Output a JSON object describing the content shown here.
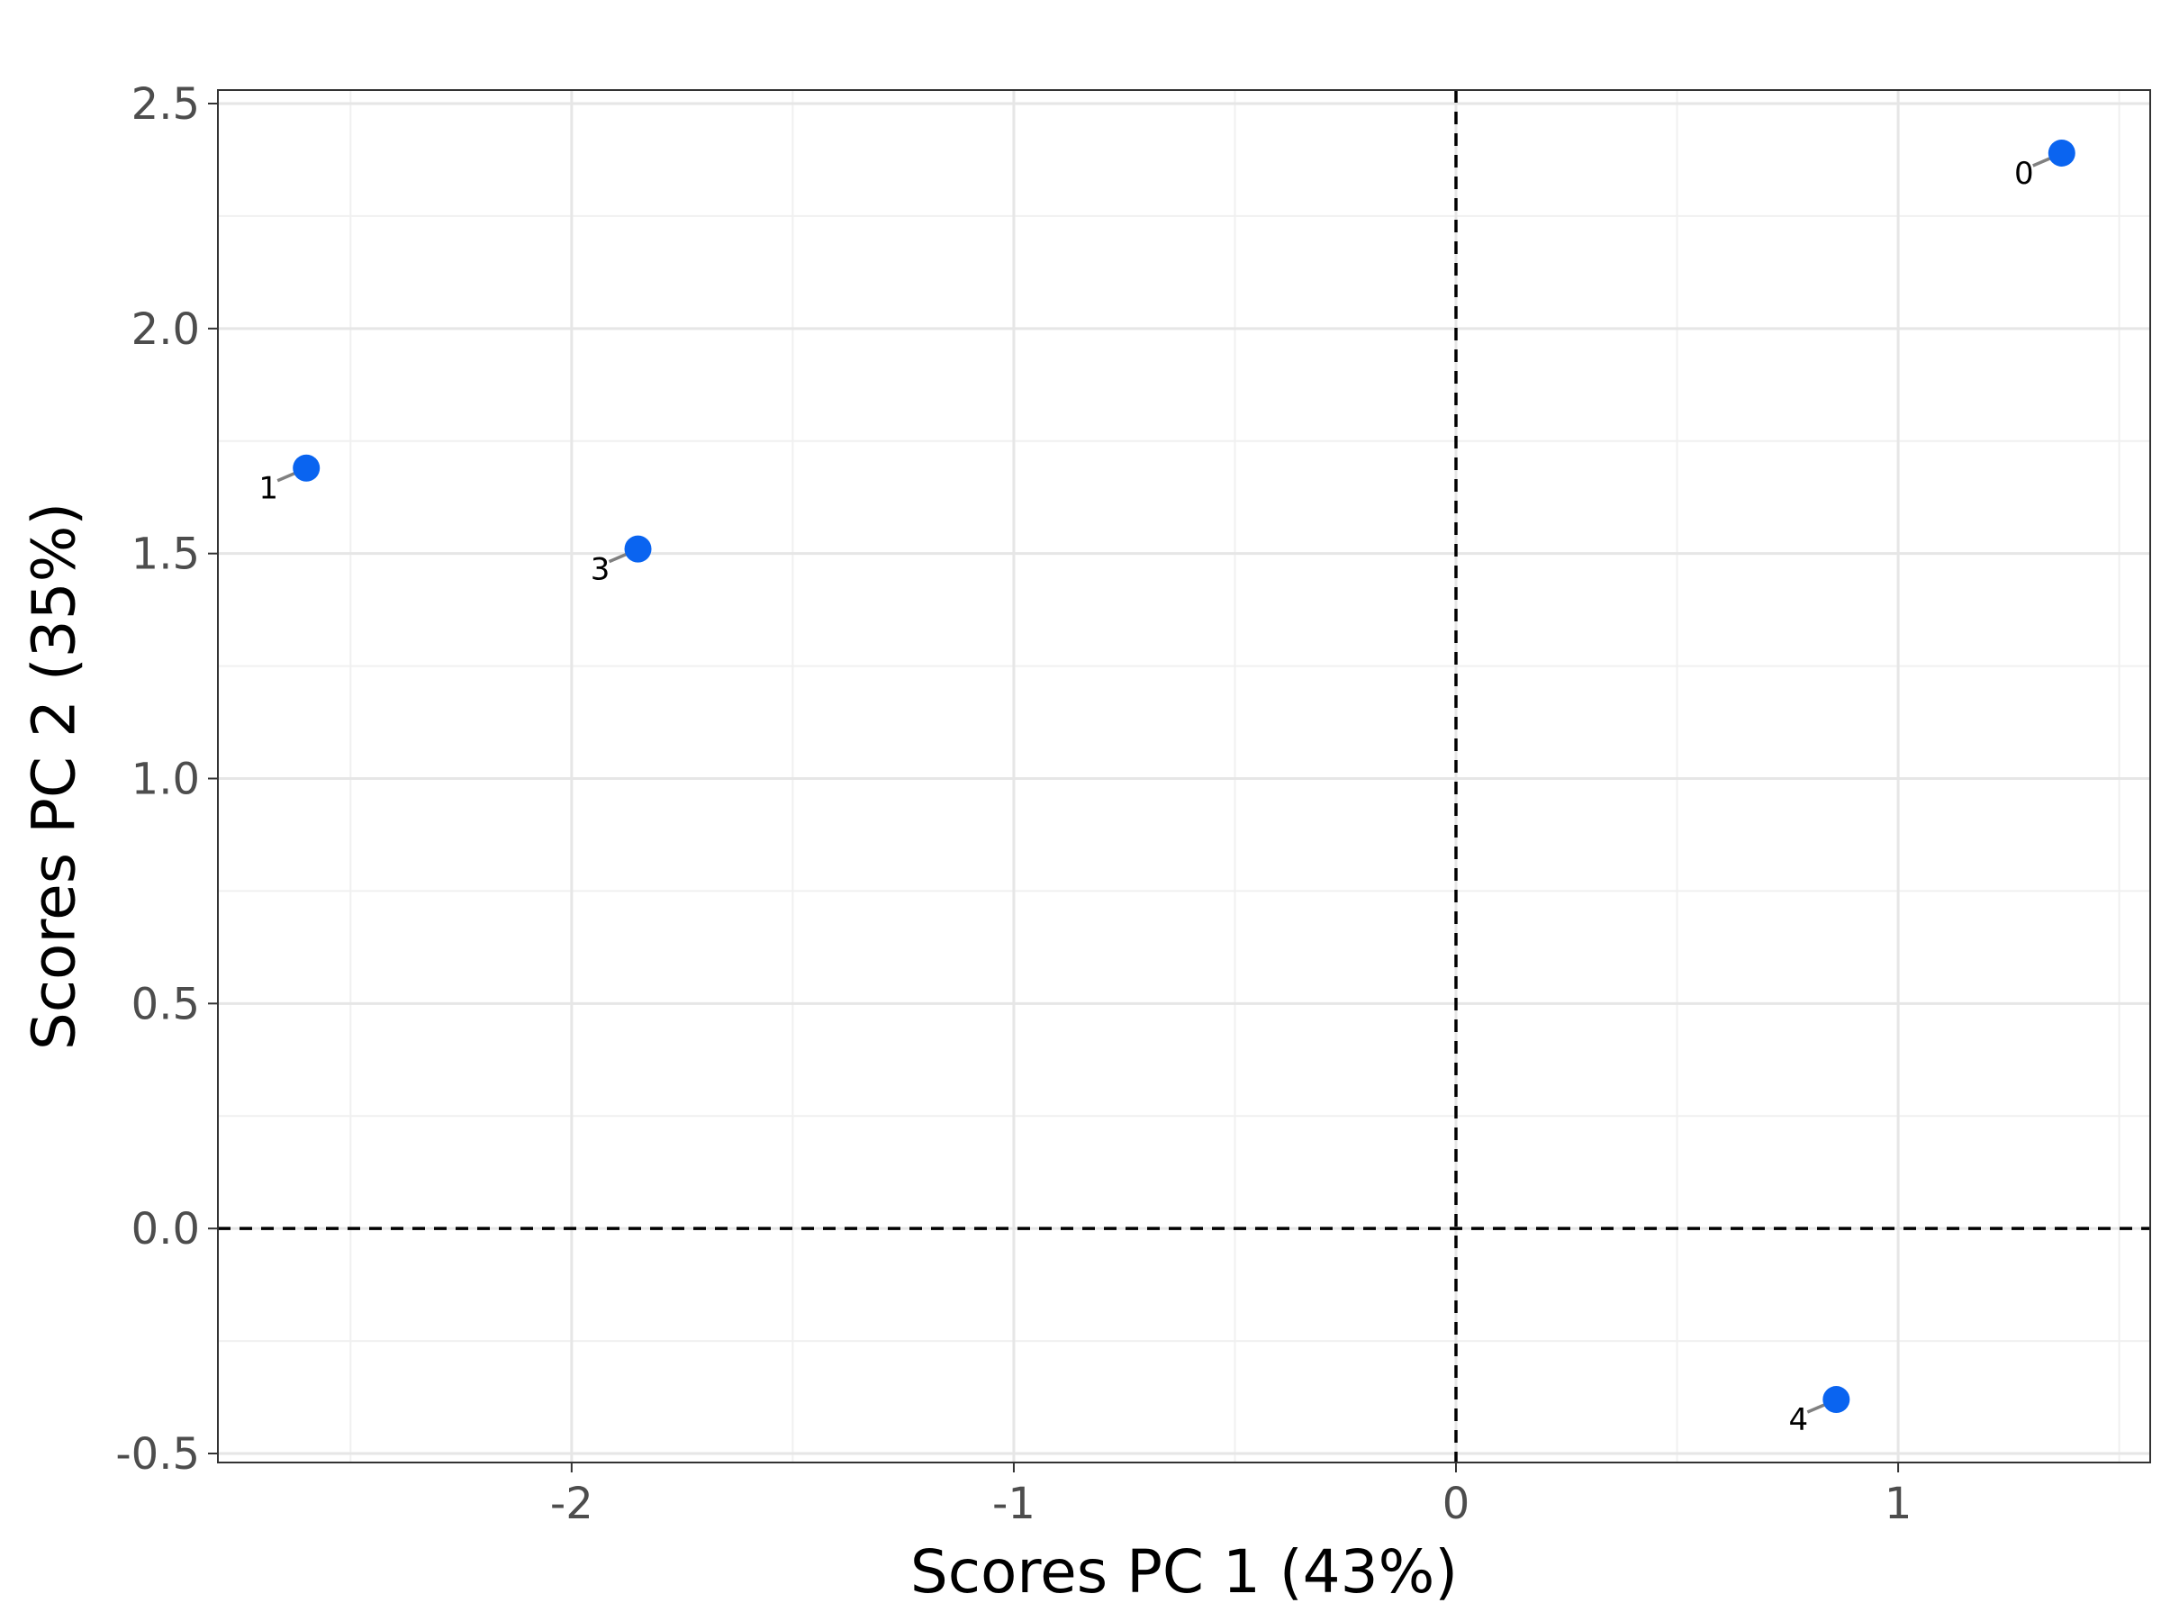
{
  "chart_data": {
    "type": "scatter",
    "xlabel": "Scores PC 1 (43%)",
    "ylabel": "Scores PC 2 (35%)",
    "xlim": [
      -2.8,
      1.57
    ],
    "ylim": [
      -0.52,
      2.53
    ],
    "x_ticks": [
      -2,
      -1,
      0,
      1
    ],
    "x_tick_labels": [
      "-2",
      "-1",
      "0",
      "1"
    ],
    "y_ticks": [
      -0.5,
      0.0,
      0.5,
      1.0,
      1.5,
      2.0,
      2.5
    ],
    "y_tick_labels": [
      "-0.5",
      "0.0",
      "0.5",
      "1.0",
      "1.5",
      "2.0",
      "2.5"
    ],
    "grid": true,
    "reference_lines": {
      "x": 0,
      "y": 0,
      "style": "dashed"
    },
    "point_color": "#0a64f0",
    "points": [
      {
        "label": "0",
        "x": 1.37,
        "y": 2.39
      },
      {
        "label": "1",
        "x": -2.6,
        "y": 1.69
      },
      {
        "label": "3",
        "x": -1.85,
        "y": 1.51
      },
      {
        "label": "4",
        "x": 0.86,
        "y": -0.38
      }
    ]
  }
}
